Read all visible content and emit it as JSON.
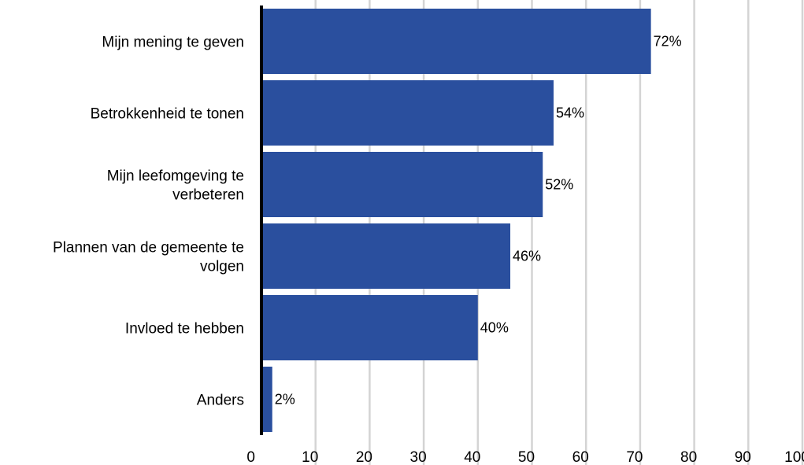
{
  "chart_data": {
    "type": "bar",
    "orientation": "horizontal",
    "categories": [
      [
        "Mijn mening te geven"
      ],
      [
        "Betrokkenheid te tonen"
      ],
      [
        "Mijn leefomgeving te",
        "verbeteren"
      ],
      [
        "Plannen van de gemeente te",
        "volgen"
      ],
      [
        "Invloed te hebben"
      ],
      [
        "Anders"
      ]
    ],
    "values": [
      72,
      54,
      52,
      46,
      40,
      2
    ],
    "data_labels": [
      "72%",
      "54%",
      "52%",
      "46%",
      "40%",
      "2%"
    ],
    "xlim": [
      0,
      100
    ],
    "xticks": [
      "0",
      "10",
      "20",
      "30",
      "40",
      "50",
      "60",
      "70",
      "80",
      "90",
      "100"
    ],
    "title": "",
    "xlabel": "",
    "ylabel": "",
    "grid": "vertical",
    "bar_color": "#2a4f9e",
    "grid_color": "#d4d4d4",
    "axis_color": "#000000"
  }
}
